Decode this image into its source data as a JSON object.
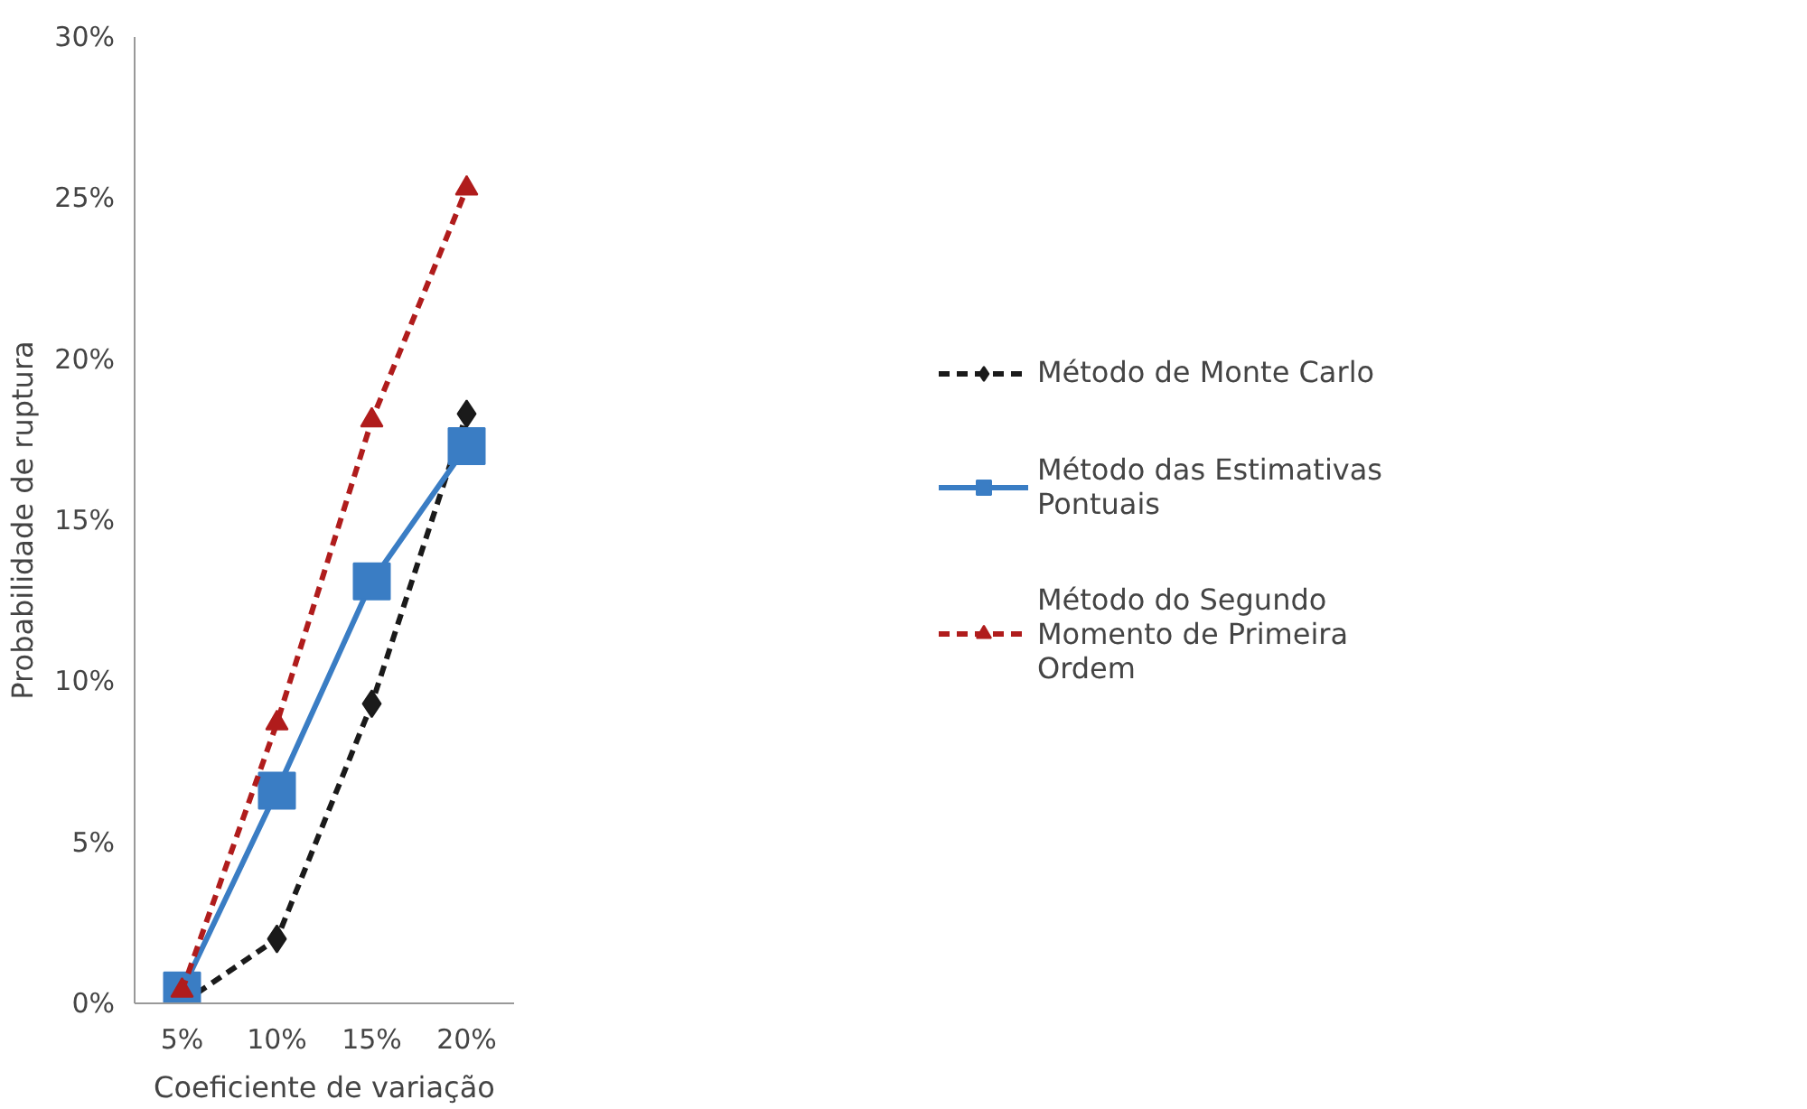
{
  "chart_data": {
    "type": "line",
    "xlabel": "Coeficiente de variação",
    "ylabel": "Probabilidade de ruptura",
    "categories": [
      "5%",
      "10%",
      "15%",
      "20%"
    ],
    "series": [
      {
        "name": "Método de Monte Carlo",
        "color": "#1a1a1a",
        "values": [
          0,
          2.0,
          9.3,
          18.3
        ],
        "marker": "diamond",
        "line_style": "dashed"
      },
      {
        "name": "Método das Estimativas Pontuais",
        "color": "#3a7dc4",
        "values": [
          0.4,
          6.6,
          13.1,
          17.3
        ],
        "marker": "square",
        "line_style": "solid"
      },
      {
        "name": "Método do Segundo Momento de Primeira Ordem",
        "color": "#b01c1c",
        "values": [
          0.4,
          8.7,
          18.1,
          25.3
        ],
        "marker": "triangle",
        "line_style": "dashed"
      }
    ],
    "ylim": [
      0,
      30
    ],
    "yticks": [
      {
        "value": 0,
        "label": "0%"
      },
      {
        "value": 5,
        "label": "5%"
      },
      {
        "value": 10,
        "label": "10%"
      },
      {
        "value": 15,
        "label": "15%"
      },
      {
        "value": 20,
        "label": "20%"
      },
      {
        "value": 25,
        "label": "25%"
      },
      {
        "value": 30,
        "label": "30%"
      }
    ],
    "grid": false,
    "legend": "right"
  }
}
